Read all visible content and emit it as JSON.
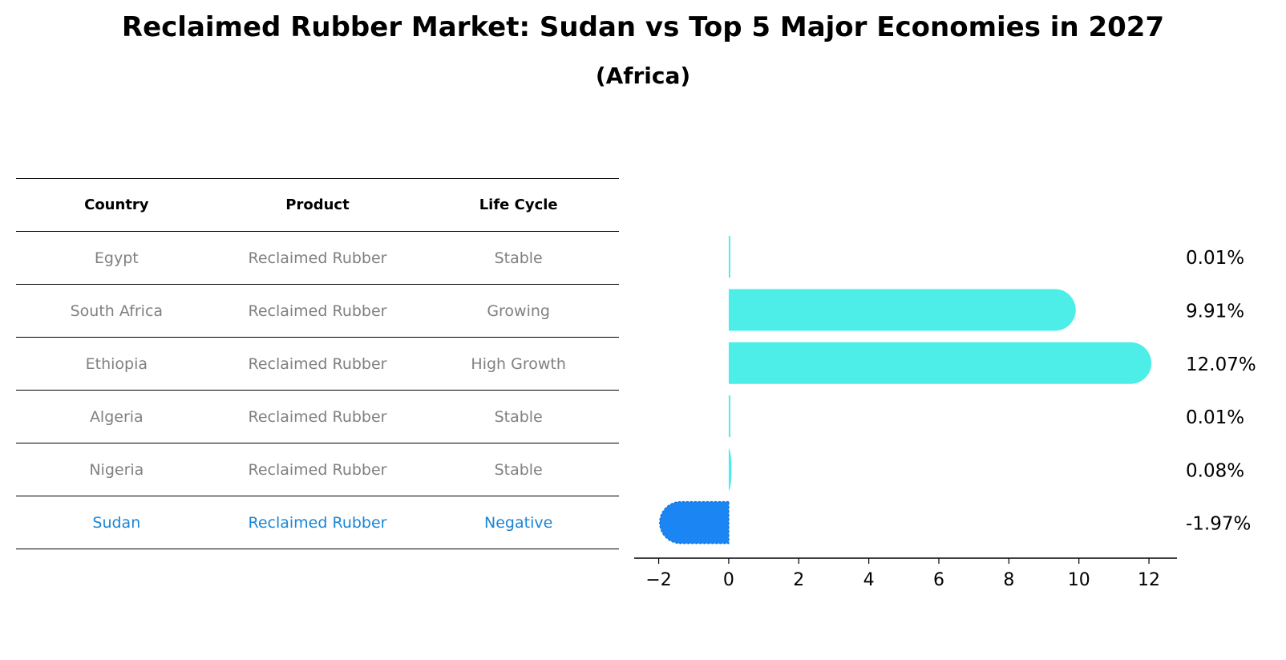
{
  "title": "Reclaimed Rubber Market: Sudan vs Top 5 Major Economies in 2027",
  "subtitle": "(Africa)",
  "colors": {
    "bar": "#4deee8",
    "highlight": "#1b86f3",
    "highlight_text": "#1a86d6",
    "muted_text": "#808080"
  },
  "table": {
    "headers": [
      "Country",
      "Product",
      "Life Cycle"
    ],
    "rows": [
      [
        "Egypt",
        "Reclaimed Rubber",
        "Stable"
      ],
      [
        "South Africa",
        "Reclaimed Rubber",
        "Growing"
      ],
      [
        "Ethiopia",
        "Reclaimed Rubber",
        "High Growth"
      ],
      [
        "Algeria",
        "Reclaimed Rubber",
        "Stable"
      ],
      [
        "Nigeria",
        "Reclaimed Rubber",
        "Stable"
      ],
      [
        "Sudan",
        "Reclaimed Rubber",
        "Negative"
      ]
    ]
  },
  "chart_data": {
    "type": "bar",
    "orientation": "horizontal",
    "categories": [
      "Egypt",
      "South Africa",
      "Ethiopia",
      "Algeria",
      "Nigeria",
      "Sudan"
    ],
    "values": [
      0.01,
      9.91,
      12.07,
      0.01,
      0.08,
      -1.97
    ],
    "labels": [
      "0.01%",
      "9.91%",
      "12.07%",
      "0.01%",
      "0.08%",
      "-1.97%"
    ],
    "highlight": "Sudan",
    "xlim": [
      -2.7,
      12.8
    ],
    "xticks": [
      -2,
      0,
      2,
      4,
      6,
      8,
      10,
      12
    ],
    "xtick_labels": [
      "−2",
      "0",
      "2",
      "4",
      "6",
      "8",
      "10",
      "12"
    ]
  }
}
